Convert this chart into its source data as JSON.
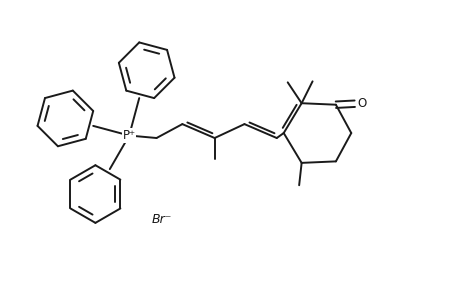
{
  "background_color": "#ffffff",
  "line_color": "#1a1a1a",
  "text_color": "#1a1a1a",
  "line_width": 1.4,
  "fig_width": 4.77,
  "fig_height": 2.81,
  "dpi": 100,
  "br_label": "Br⁻",
  "p_label": "P⁺",
  "o_label": "O"
}
